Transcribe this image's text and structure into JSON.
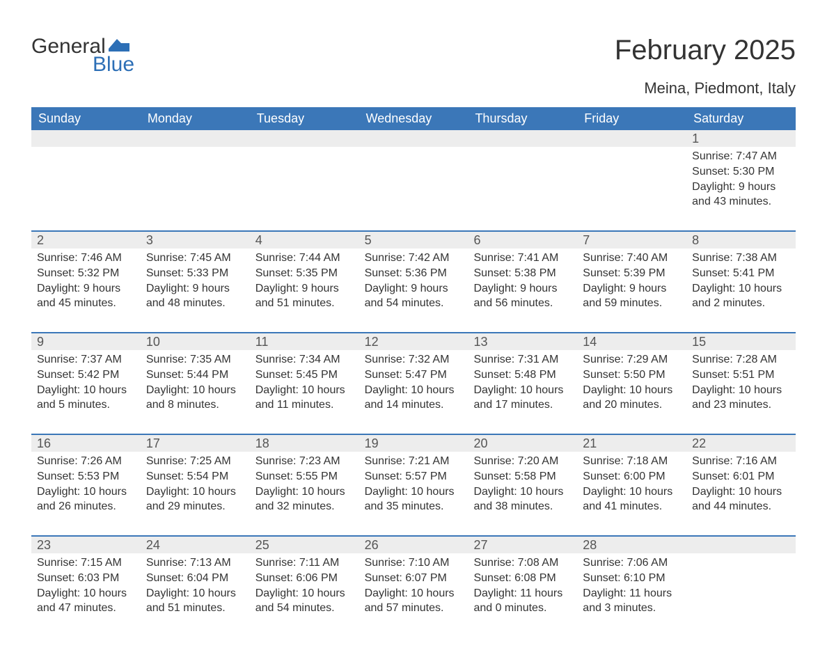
{
  "logo": {
    "text1": "General",
    "text2": "Blue",
    "flag_color": "#2d6fb6"
  },
  "title": "February 2025",
  "location": "Meina, Piedmont, Italy",
  "colors": {
    "header_bg": "#3b77b8",
    "header_text": "#ffffff",
    "band_bg": "#ededed",
    "rule": "#3b77b8",
    "body_text": "#333333",
    "logo_blue": "#2d6fb6"
  },
  "day_names": [
    "Sunday",
    "Monday",
    "Tuesday",
    "Wednesday",
    "Thursday",
    "Friday",
    "Saturday"
  ],
  "weeks": [
    [
      null,
      null,
      null,
      null,
      null,
      null,
      {
        "n": "1",
        "sunrise": "Sunrise: 7:47 AM",
        "sunset": "Sunset: 5:30 PM",
        "day1": "Daylight: 9 hours",
        "day2": "and 43 minutes."
      }
    ],
    [
      {
        "n": "2",
        "sunrise": "Sunrise: 7:46 AM",
        "sunset": "Sunset: 5:32 PM",
        "day1": "Daylight: 9 hours",
        "day2": "and 45 minutes."
      },
      {
        "n": "3",
        "sunrise": "Sunrise: 7:45 AM",
        "sunset": "Sunset: 5:33 PM",
        "day1": "Daylight: 9 hours",
        "day2": "and 48 minutes."
      },
      {
        "n": "4",
        "sunrise": "Sunrise: 7:44 AM",
        "sunset": "Sunset: 5:35 PM",
        "day1": "Daylight: 9 hours",
        "day2": "and 51 minutes."
      },
      {
        "n": "5",
        "sunrise": "Sunrise: 7:42 AM",
        "sunset": "Sunset: 5:36 PM",
        "day1": "Daylight: 9 hours",
        "day2": "and 54 minutes."
      },
      {
        "n": "6",
        "sunrise": "Sunrise: 7:41 AM",
        "sunset": "Sunset: 5:38 PM",
        "day1": "Daylight: 9 hours",
        "day2": "and 56 minutes."
      },
      {
        "n": "7",
        "sunrise": "Sunrise: 7:40 AM",
        "sunset": "Sunset: 5:39 PM",
        "day1": "Daylight: 9 hours",
        "day2": "and 59 minutes."
      },
      {
        "n": "8",
        "sunrise": "Sunrise: 7:38 AM",
        "sunset": "Sunset: 5:41 PM",
        "day1": "Daylight: 10 hours",
        "day2": "and 2 minutes."
      }
    ],
    [
      {
        "n": "9",
        "sunrise": "Sunrise: 7:37 AM",
        "sunset": "Sunset: 5:42 PM",
        "day1": "Daylight: 10 hours",
        "day2": "and 5 minutes."
      },
      {
        "n": "10",
        "sunrise": "Sunrise: 7:35 AM",
        "sunset": "Sunset: 5:44 PM",
        "day1": "Daylight: 10 hours",
        "day2": "and 8 minutes."
      },
      {
        "n": "11",
        "sunrise": "Sunrise: 7:34 AM",
        "sunset": "Sunset: 5:45 PM",
        "day1": "Daylight: 10 hours",
        "day2": "and 11 minutes."
      },
      {
        "n": "12",
        "sunrise": "Sunrise: 7:32 AM",
        "sunset": "Sunset: 5:47 PM",
        "day1": "Daylight: 10 hours",
        "day2": "and 14 minutes."
      },
      {
        "n": "13",
        "sunrise": "Sunrise: 7:31 AM",
        "sunset": "Sunset: 5:48 PM",
        "day1": "Daylight: 10 hours",
        "day2": "and 17 minutes."
      },
      {
        "n": "14",
        "sunrise": "Sunrise: 7:29 AM",
        "sunset": "Sunset: 5:50 PM",
        "day1": "Daylight: 10 hours",
        "day2": "and 20 minutes."
      },
      {
        "n": "15",
        "sunrise": "Sunrise: 7:28 AM",
        "sunset": "Sunset: 5:51 PM",
        "day1": "Daylight: 10 hours",
        "day2": "and 23 minutes."
      }
    ],
    [
      {
        "n": "16",
        "sunrise": "Sunrise: 7:26 AM",
        "sunset": "Sunset: 5:53 PM",
        "day1": "Daylight: 10 hours",
        "day2": "and 26 minutes."
      },
      {
        "n": "17",
        "sunrise": "Sunrise: 7:25 AM",
        "sunset": "Sunset: 5:54 PM",
        "day1": "Daylight: 10 hours",
        "day2": "and 29 minutes."
      },
      {
        "n": "18",
        "sunrise": "Sunrise: 7:23 AM",
        "sunset": "Sunset: 5:55 PM",
        "day1": "Daylight: 10 hours",
        "day2": "and 32 minutes."
      },
      {
        "n": "19",
        "sunrise": "Sunrise: 7:21 AM",
        "sunset": "Sunset: 5:57 PM",
        "day1": "Daylight: 10 hours",
        "day2": "and 35 minutes."
      },
      {
        "n": "20",
        "sunrise": "Sunrise: 7:20 AM",
        "sunset": "Sunset: 5:58 PM",
        "day1": "Daylight: 10 hours",
        "day2": "and 38 minutes."
      },
      {
        "n": "21",
        "sunrise": "Sunrise: 7:18 AM",
        "sunset": "Sunset: 6:00 PM",
        "day1": "Daylight: 10 hours",
        "day2": "and 41 minutes."
      },
      {
        "n": "22",
        "sunrise": "Sunrise: 7:16 AM",
        "sunset": "Sunset: 6:01 PM",
        "day1": "Daylight: 10 hours",
        "day2": "and 44 minutes."
      }
    ],
    [
      {
        "n": "23",
        "sunrise": "Sunrise: 7:15 AM",
        "sunset": "Sunset: 6:03 PM",
        "day1": "Daylight: 10 hours",
        "day2": "and 47 minutes."
      },
      {
        "n": "24",
        "sunrise": "Sunrise: 7:13 AM",
        "sunset": "Sunset: 6:04 PM",
        "day1": "Daylight: 10 hours",
        "day2": "and 51 minutes."
      },
      {
        "n": "25",
        "sunrise": "Sunrise: 7:11 AM",
        "sunset": "Sunset: 6:06 PM",
        "day1": "Daylight: 10 hours",
        "day2": "and 54 minutes."
      },
      {
        "n": "26",
        "sunrise": "Sunrise: 7:10 AM",
        "sunset": "Sunset: 6:07 PM",
        "day1": "Daylight: 10 hours",
        "day2": "and 57 minutes."
      },
      {
        "n": "27",
        "sunrise": "Sunrise: 7:08 AM",
        "sunset": "Sunset: 6:08 PM",
        "day1": "Daylight: 11 hours",
        "day2": "and 0 minutes."
      },
      {
        "n": "28",
        "sunrise": "Sunrise: 7:06 AM",
        "sunset": "Sunset: 6:10 PM",
        "day1": "Daylight: 11 hours",
        "day2": "and 3 minutes."
      },
      null
    ]
  ]
}
